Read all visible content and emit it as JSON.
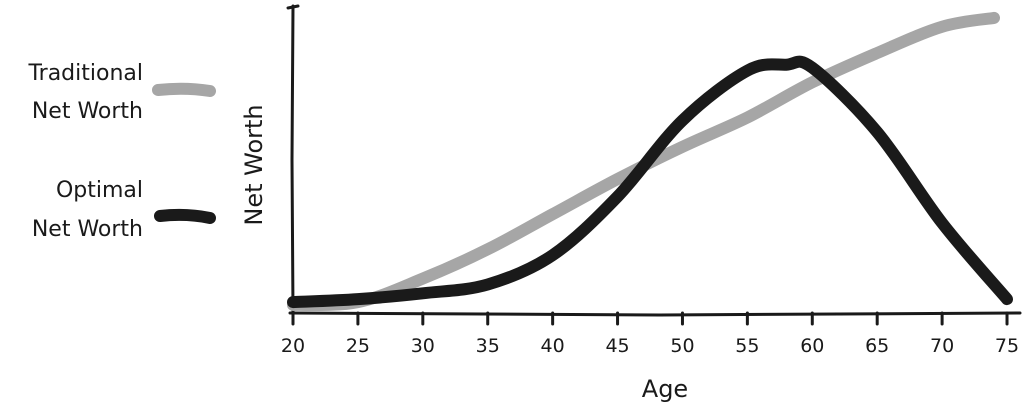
{
  "chart_data": {
    "type": "line",
    "title": "",
    "xlabel": "Age",
    "ylabel": "Net Worth",
    "xlim": [
      20,
      76
    ],
    "ylim": [
      0,
      100
    ],
    "x_ticks": [
      20,
      25,
      30,
      35,
      40,
      45,
      50,
      55,
      60,
      65,
      70,
      75
    ],
    "y_ticks_labeled": false,
    "grid": false,
    "legend_position": "left",
    "series": [
      {
        "name": "Traditional Net Worth",
        "color": "#a6a6a6",
        "x": [
          20,
          25,
          30,
          35,
          40,
          45,
          50,
          55,
          60,
          65,
          70,
          74
        ],
        "y": [
          0,
          1,
          9,
          19,
          31,
          43,
          54,
          64,
          76,
          86,
          95,
          98
        ]
      },
      {
        "name": "Optimal Net Worth",
        "color": "#1a1a1a",
        "x": [
          20,
          25,
          30,
          35,
          40,
          45,
          50,
          55,
          58,
          60,
          65,
          70,
          75
        ],
        "y": [
          1,
          2,
          4,
          7,
          17,
          37,
          63,
          80,
          82,
          81,
          59,
          28,
          2
        ]
      }
    ],
    "legend": [
      {
        "series": 0,
        "line1": "Traditional",
        "line2": "Net Worth"
      },
      {
        "series": 1,
        "line1": "Optimal",
        "line2": "Net Worth"
      }
    ]
  }
}
